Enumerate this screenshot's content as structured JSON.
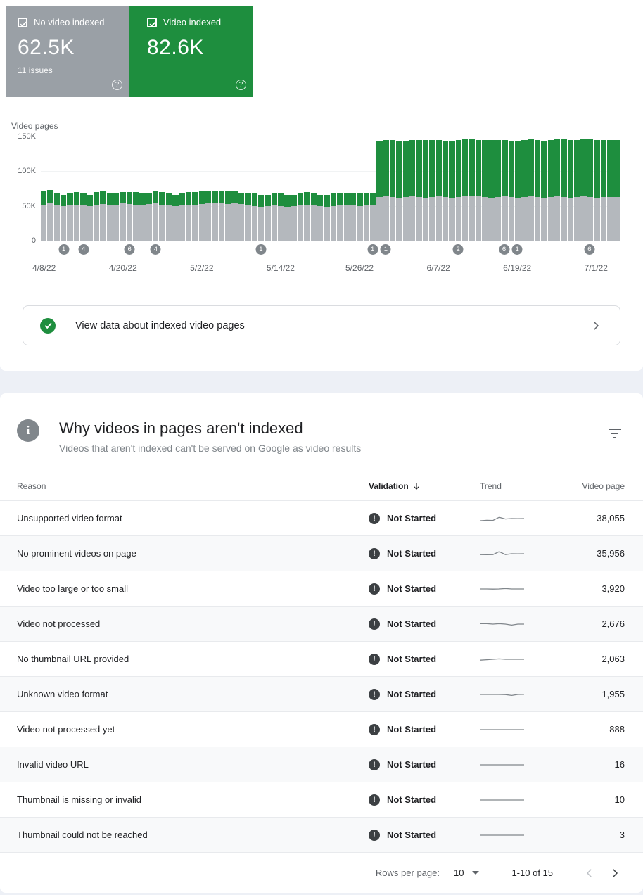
{
  "stat_cards": {
    "not_indexed": {
      "label": "No video indexed",
      "value": "62.5K",
      "issues": "11 issues",
      "color": "#9aa0a6",
      "checked": true
    },
    "indexed": {
      "label": "Video indexed",
      "value": "82.6K",
      "color": "#1e8e3e",
      "checked": true
    }
  },
  "chart_data": {
    "type": "bar",
    "stacked": true,
    "title": "Video pages",
    "units": "thousands",
    "ylim_k": [
      0,
      150
    ],
    "yticks": [
      {
        "label": "0",
        "v": 0
      },
      {
        "label": "50K",
        "v": 50
      },
      {
        "label": "100K",
        "v": 100
      },
      {
        "label": "150K",
        "v": 150
      }
    ],
    "xticks": [
      {
        "day": 0,
        "label": "4/8/22"
      },
      {
        "day": 12,
        "label": "4/20/22"
      },
      {
        "day": 24,
        "label": "5/2/22"
      },
      {
        "day": 36,
        "label": "5/14/22"
      },
      {
        "day": 48,
        "label": "5/26/22"
      },
      {
        "day": 60,
        "label": "6/7/22"
      },
      {
        "day": 72,
        "label": "6/19/22"
      },
      {
        "day": 84,
        "label": "7/1/22"
      }
    ],
    "series": [
      {
        "name": "No video indexed",
        "color": "#b4b8bd",
        "values": [
          52,
          54,
          52,
          50,
          51,
          52,
          51,
          50,
          52,
          53,
          51,
          52,
          54,
          53,
          52,
          51,
          53,
          54,
          52,
          51,
          50,
          51,
          52,
          51,
          53,
          54,
          55,
          54,
          53,
          54,
          53,
          52,
          50,
          49,
          50,
          51,
          50,
          49,
          50,
          51,
          52,
          51,
          50,
          49,
          50,
          51,
          52,
          51,
          50,
          51,
          52,
          63,
          64,
          63,
          62,
          63,
          64,
          63,
          62,
          63,
          64,
          63,
          62,
          63,
          64,
          65,
          64,
          63,
          62,
          63,
          64,
          63,
          62,
          63,
          64,
          63,
          62,
          63,
          64,
          63,
          62,
          63,
          64,
          63,
          62,
          63,
          63,
          62.5
        ]
      },
      {
        "name": "Video indexed",
        "color": "#1e8e3e",
        "values": [
          20,
          19,
          17,
          16,
          17,
          18,
          17,
          16,
          18,
          19,
          18,
          17,
          16,
          17,
          18,
          17,
          16,
          17,
          18,
          17,
          16,
          17,
          18,
          19,
          18,
          17,
          16,
          17,
          18,
          17,
          16,
          17,
          18,
          17,
          16,
          17,
          18,
          17,
          16,
          17,
          18,
          17,
          16,
          17,
          18,
          17,
          16,
          17,
          18,
          17,
          16,
          80,
          81,
          82,
          81,
          80,
          81,
          82,
          83,
          82,
          81,
          80,
          81,
          82,
          83,
          82,
          81,
          82,
          83,
          82,
          81,
          80,
          81,
          82,
          83,
          82,
          81,
          82,
          83,
          84,
          83,
          82,
          83,
          84,
          83,
          82,
          82,
          82.6
        ]
      }
    ],
    "badges": [
      {
        "day": 3,
        "label": "1"
      },
      {
        "day": 6,
        "label": "4"
      },
      {
        "day": 13,
        "label": "6"
      },
      {
        "day": 17,
        "label": "4"
      },
      {
        "day": 33,
        "label": "1"
      },
      {
        "day": 50,
        "label": "1"
      },
      {
        "day": 52,
        "label": "1"
      },
      {
        "day": 63,
        "label": "2"
      },
      {
        "day": 70,
        "label": "6"
      },
      {
        "day": 72,
        "label": "1"
      },
      {
        "day": 83,
        "label": "6"
      }
    ]
  },
  "view_data_link": {
    "label": "View data about indexed video pages"
  },
  "table_section": {
    "title": "Why videos in pages aren't indexed",
    "subtitle": "Videos that aren't indexed can't be served on Google as video results",
    "columns": {
      "reason": "Reason",
      "validation": "Validation",
      "trend": "Trend",
      "video_page": "Video page"
    },
    "rows": [
      {
        "reason": "Unsupported video format",
        "validation": "Not Started",
        "video_pages": "38,055",
        "trend": [
          0.75,
          0.7,
          0.72,
          0.35,
          0.55,
          0.5,
          0.52,
          0.5
        ]
      },
      {
        "reason": "No prominent videos on page",
        "validation": "Not Started",
        "video_pages": "35,956",
        "trend": [
          0.6,
          0.62,
          0.6,
          0.25,
          0.6,
          0.5,
          0.52,
          0.5
        ]
      },
      {
        "reason": "Video too large or too small",
        "validation": "Not Started",
        "video_pages": "3,920",
        "trend": [
          0.5,
          0.5,
          0.52,
          0.5,
          0.45,
          0.5,
          0.5,
          0.5
        ]
      },
      {
        "reason": "Video not processed",
        "validation": "Not Started",
        "video_pages": "2,676",
        "trend": [
          0.45,
          0.45,
          0.5,
          0.45,
          0.5,
          0.62,
          0.5,
          0.5
        ]
      },
      {
        "reason": "No thumbnail URL provided",
        "validation": "Not Started",
        "video_pages": "2,063",
        "trend": [
          0.6,
          0.55,
          0.5,
          0.45,
          0.5,
          0.5,
          0.5,
          0.5
        ]
      },
      {
        "reason": "Unknown video format",
        "validation": "Not Started",
        "video_pages": "1,955",
        "trend": [
          0.5,
          0.5,
          0.48,
          0.5,
          0.52,
          0.62,
          0.5,
          0.48
        ]
      },
      {
        "reason": "Video not processed yet",
        "validation": "Not Started",
        "video_pages": "888",
        "trend": [
          0.5,
          0.5,
          0.5,
          0.5,
          0.5,
          0.5,
          0.5,
          0.5
        ]
      },
      {
        "reason": "Invalid video URL",
        "validation": "Not Started",
        "video_pages": "16",
        "trend": [
          0.5,
          0.5,
          0.5,
          0.5,
          0.5,
          0.5,
          0.5,
          0.5
        ]
      },
      {
        "reason": "Thumbnail is missing or invalid",
        "validation": "Not Started",
        "video_pages": "10",
        "trend": [
          0.5,
          0.5,
          0.5,
          0.5,
          0.5,
          0.5,
          0.5,
          0.5
        ]
      },
      {
        "reason": "Thumbnail could not be reached",
        "validation": "Not Started",
        "video_pages": "3",
        "trend": [
          0.5,
          0.5,
          0.5,
          0.5,
          0.5,
          0.5,
          0.5,
          0.5
        ]
      }
    ],
    "footer": {
      "rows_per_page_label": "Rows per page:",
      "rows_per_page": "10",
      "range": "1-10 of 15"
    }
  }
}
